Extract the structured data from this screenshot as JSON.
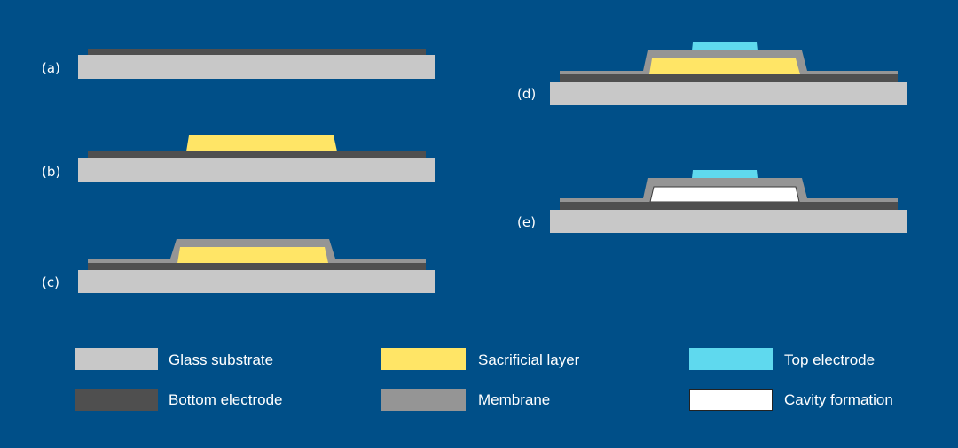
{
  "colors": {
    "background": "#004F88",
    "glass_substrate": "#C8C8C8",
    "bottom_electrode": "#4F4F4F",
    "sacrificial_layer": "#FFE566",
    "membrane": "#959595",
    "top_electrode": "#5FD9EE",
    "cavity": "#FFFFFF"
  },
  "steps": [
    {
      "label": "(a)"
    },
    {
      "label": "(b)"
    },
    {
      "label": "(c)"
    },
    {
      "label": "(d)"
    },
    {
      "label": "(e)"
    }
  ],
  "legend": [
    {
      "label": "Glass substrate"
    },
    {
      "label": "Sacrificial layer"
    },
    {
      "label": "Top electrode"
    },
    {
      "label": "Bottom electrode"
    },
    {
      "label": "Membrane"
    },
    {
      "label": "Cavity formation"
    }
  ]
}
